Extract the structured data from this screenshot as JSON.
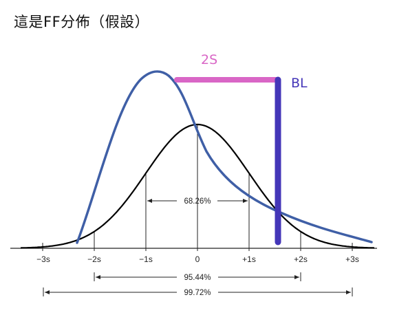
{
  "title": "這是FF分佈（假設）",
  "annotations": {
    "top_bar": {
      "label": "2S",
      "color": "#d966c6"
    },
    "vertical_bar": {
      "label": "BL",
      "color": "#4436b8"
    }
  },
  "curves": {
    "normal_color": "#000000",
    "skewed_color": "#3f5fa6"
  },
  "axis": {
    "ticks": [
      "−3s",
      "−2s",
      "−1s",
      "0",
      "+1s",
      "+2s",
      "+3s"
    ]
  },
  "intervals": [
    {
      "label": "68.26%",
      "from": "−1s",
      "to": "+1s"
    },
    {
      "label": "95.44%",
      "from": "−2s",
      "to": "+2s"
    },
    {
      "label": "99.72%",
      "from": "−3s",
      "to": "+3s"
    }
  ]
}
